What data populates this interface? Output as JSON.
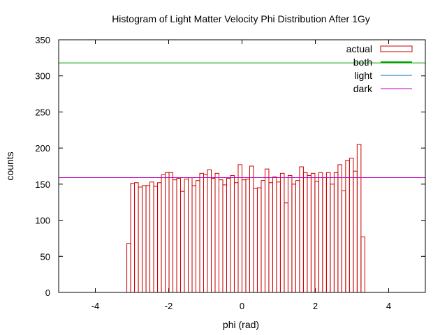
{
  "chart_data": {
    "type": "bar",
    "title": "Histogram of Light Matter Velocity Phi Distribution After 1Gy",
    "xlabel": "phi (rad)",
    "ylabel": "counts",
    "xlim": [
      -5,
      5
    ],
    "ylim": [
      0,
      350
    ],
    "xticks": [
      -4,
      -2,
      0,
      2,
      4
    ],
    "yticks": [
      0,
      50,
      100,
      150,
      200,
      250,
      300,
      350
    ],
    "grid": false,
    "legend_position": "top-right",
    "histogram": {
      "name": "actual",
      "bin_start": -3.1416,
      "bin_width": 0.1047,
      "counts": [
        68,
        151,
        152,
        146,
        148,
        148,
        153,
        147,
        152,
        163,
        166,
        166,
        156,
        158,
        140,
        157,
        159,
        148,
        155,
        165,
        163,
        170,
        158,
        165,
        156,
        149,
        158,
        162,
        152,
        177,
        156,
        157,
        175,
        144,
        145,
        155,
        171,
        152,
        160,
        153,
        165,
        124,
        162,
        150,
        155,
        174,
        166,
        162,
        165,
        154,
        166,
        159,
        166,
        150,
        166,
        177,
        141,
        183,
        186,
        168,
        205,
        77
      ],
      "color": "#cc0000"
    },
    "series": [
      {
        "name": "both",
        "type": "hline",
        "value": 318,
        "color": "#00a000"
      },
      {
        "name": "light",
        "type": "hline",
        "value": null,
        "color": "#0070c0"
      },
      {
        "name": "dark",
        "type": "hline",
        "value": 159,
        "color": "#c000c0"
      }
    ]
  }
}
